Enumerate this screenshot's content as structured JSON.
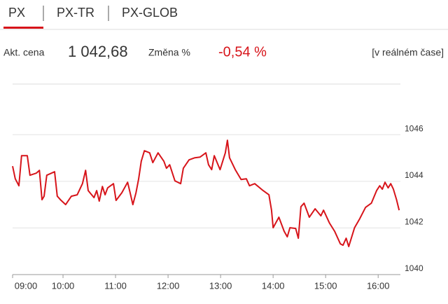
{
  "tabs": [
    "PX",
    "PX-TR",
    "PX-GLOB"
  ],
  "quote": {
    "price_label": "Akt. cena",
    "price": "1 042,68",
    "change_label": "Změna %",
    "change": "-0,54 %",
    "mode": "[v reálném čase]"
  },
  "chart_data": {
    "type": "line",
    "x": [
      9.04,
      9.09,
      9.16,
      9.21,
      9.32,
      9.37,
      9.49,
      9.55,
      9.6,
      9.64,
      9.69,
      9.84,
      9.89,
      9.95,
      10.05,
      10.16,
      10.27,
      10.37,
      10.43,
      10.48,
      10.59,
      10.64,
      10.69,
      10.75,
      10.8,
      10.85,
      10.96,
      11.01,
      11.12,
      11.23,
      11.28,
      11.33,
      11.39,
      11.44,
      11.49,
      11.55,
      11.65,
      11.71,
      11.81,
      11.92,
      11.97,
      12.03,
      12.13,
      12.24,
      12.29,
      12.4,
      12.51,
      12.61,
      12.72,
      12.77,
      12.83,
      12.88,
      12.99,
      13.09,
      13.13,
      13.17,
      13.28,
      13.39,
      13.49,
      13.55,
      13.65,
      13.81,
      13.92,
      13.97,
      14.0,
      14.11,
      14.21,
      14.27,
      14.32,
      14.43,
      14.48,
      14.53,
      14.59,
      14.69,
      14.8,
      14.91,
      14.96,
      15.07,
      15.17,
      15.28,
      15.33,
      15.39,
      15.44,
      15.55,
      15.65,
      15.76,
      15.87,
      15.97,
      16.03,
      16.08,
      16.13,
      16.19,
      16.24,
      16.29,
      16.35,
      16.4
    ],
    "series": [
      {
        "color": "#d7141a",
        "values": [
          1044.65,
          1044.11,
          1043.81,
          1045.1,
          1045.1,
          1044.26,
          1044.35,
          1044.47,
          1043.21,
          1043.36,
          1044.26,
          1044.41,
          1043.36,
          1043.21,
          1043.0,
          1043.36,
          1043.42,
          1043.9,
          1044.47,
          1043.6,
          1043.3,
          1043.6,
          1043.15,
          1043.78,
          1043.42,
          1043.72,
          1043.9,
          1043.18,
          1043.51,
          1043.96,
          1043.48,
          1043.0,
          1043.51,
          1044.11,
          1044.86,
          1045.31,
          1045.22,
          1044.8,
          1045.22,
          1044.86,
          1044.56,
          1044.71,
          1044.02,
          1043.9,
          1044.56,
          1044.92,
          1045.01,
          1045.04,
          1045.22,
          1044.71,
          1044.5,
          1045.1,
          1044.5,
          1045.22,
          1045.76,
          1045.01,
          1044.5,
          1044.08,
          1044.11,
          1043.81,
          1043.9,
          1043.6,
          1043.42,
          1042.76,
          1042.01,
          1042.46,
          1041.86,
          1041.62,
          1042.01,
          1041.98,
          1041.56,
          1042.91,
          1043.06,
          1042.46,
          1042.82,
          1042.52,
          1042.76,
          1042.22,
          1041.86,
          1041.32,
          1041.26,
          1041.56,
          1041.2,
          1042.01,
          1042.4,
          1042.88,
          1043.06,
          1043.6,
          1043.81,
          1043.66,
          1043.96,
          1043.72,
          1043.9,
          1043.66,
          1043.21,
          1042.76
        ]
      }
    ],
    "xlim": [
      9,
      16.45
    ],
    "xticks": [
      {
        "value": 9,
        "label": "09:00"
      },
      {
        "value": 10,
        "label": "10:00"
      },
      {
        "value": 11,
        "label": "11:00"
      },
      {
        "value": 12,
        "label": "12:00"
      },
      {
        "value": 13,
        "label": "13:00"
      },
      {
        "value": 14,
        "label": "14:00"
      },
      {
        "value": 15,
        "label": "15:00"
      },
      {
        "value": 16,
        "label": "16:00"
      }
    ],
    "ylim": [
      1040,
      1048.2
    ],
    "yticks": [
      1040,
      1042,
      1044,
      1046
    ],
    "grid": true
  }
}
